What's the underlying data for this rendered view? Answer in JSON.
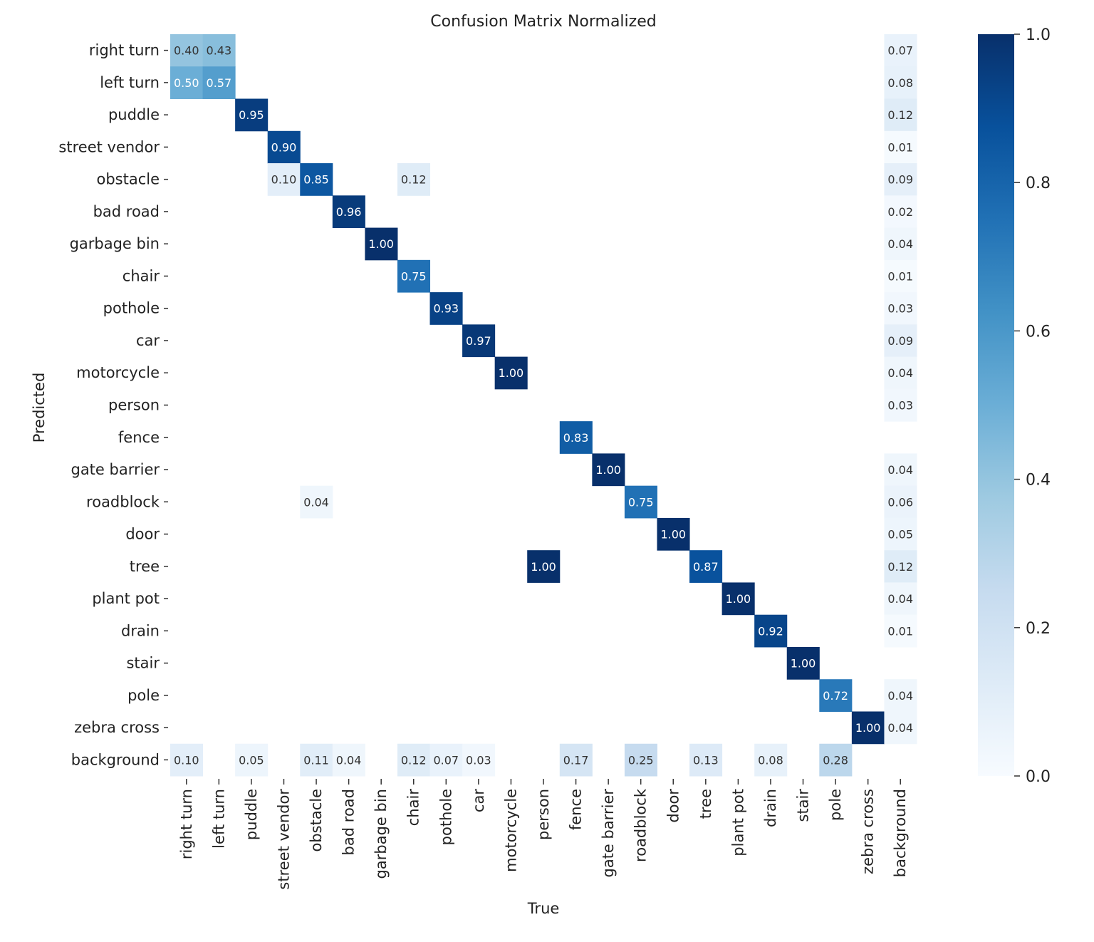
{
  "chart_data": {
    "type": "heatmap",
    "title": "Confusion Matrix Normalized",
    "xlabel": "True",
    "ylabel": "Predicted",
    "colormap": "Blues",
    "colorbar": {
      "range": [
        0.0,
        1.0
      ],
      "ticks": [
        "0.0",
        "0.2",
        "0.4",
        "0.6",
        "0.8",
        "1.0"
      ],
      "placement": "right"
    },
    "labels": [
      "right turn",
      "left turn",
      "puddle",
      "street vendor",
      "obstacle",
      "bad road",
      "garbage bin",
      "chair",
      "pothole",
      "car",
      "motorcycle",
      "person",
      "fence",
      "gate barrier",
      "roadblock",
      "door",
      "tree",
      "plant pot",
      "drain",
      "stair",
      "pole",
      "zebra cross",
      "background"
    ],
    "matrix": [
      [
        0.4,
        0.43,
        null,
        null,
        null,
        null,
        null,
        null,
        null,
        null,
        null,
        null,
        null,
        null,
        null,
        null,
        null,
        null,
        null,
        null,
        null,
        null,
        0.07
      ],
      [
        0.5,
        0.57,
        null,
        null,
        null,
        null,
        null,
        null,
        null,
        null,
        null,
        null,
        null,
        null,
        null,
        null,
        null,
        null,
        null,
        null,
        null,
        null,
        0.08
      ],
      [
        null,
        null,
        0.95,
        null,
        null,
        null,
        null,
        null,
        null,
        null,
        null,
        null,
        null,
        null,
        null,
        null,
        null,
        null,
        null,
        null,
        null,
        null,
        0.12
      ],
      [
        null,
        null,
        null,
        0.9,
        null,
        null,
        null,
        null,
        null,
        null,
        null,
        null,
        null,
        null,
        null,
        null,
        null,
        null,
        null,
        null,
        null,
        null,
        0.01
      ],
      [
        null,
        null,
        null,
        0.1,
        0.85,
        null,
        null,
        0.12,
        null,
        null,
        null,
        null,
        null,
        null,
        null,
        null,
        null,
        null,
        null,
        null,
        null,
        null,
        0.09
      ],
      [
        null,
        null,
        null,
        null,
        null,
        0.96,
        null,
        null,
        null,
        null,
        null,
        null,
        null,
        null,
        null,
        null,
        null,
        null,
        null,
        null,
        null,
        null,
        0.02
      ],
      [
        null,
        null,
        null,
        null,
        null,
        null,
        1.0,
        null,
        null,
        null,
        null,
        null,
        null,
        null,
        null,
        null,
        null,
        null,
        null,
        null,
        null,
        null,
        0.04
      ],
      [
        null,
        null,
        null,
        null,
        null,
        null,
        null,
        0.75,
        null,
        null,
        null,
        null,
        null,
        null,
        null,
        null,
        null,
        null,
        null,
        null,
        null,
        null,
        0.01
      ],
      [
        null,
        null,
        null,
        null,
        null,
        null,
        null,
        null,
        0.93,
        null,
        null,
        null,
        null,
        null,
        null,
        null,
        null,
        null,
        null,
        null,
        null,
        null,
        0.03
      ],
      [
        null,
        null,
        null,
        null,
        null,
        null,
        null,
        null,
        null,
        0.97,
        null,
        null,
        null,
        null,
        null,
        null,
        null,
        null,
        null,
        null,
        null,
        null,
        0.09
      ],
      [
        null,
        null,
        null,
        null,
        null,
        null,
        null,
        null,
        null,
        null,
        1.0,
        null,
        null,
        null,
        null,
        null,
        null,
        null,
        null,
        null,
        null,
        null,
        0.04
      ],
      [
        null,
        null,
        null,
        null,
        null,
        null,
        null,
        null,
        null,
        null,
        null,
        null,
        null,
        null,
        null,
        null,
        null,
        null,
        null,
        null,
        null,
        null,
        0.03
      ],
      [
        null,
        null,
        null,
        null,
        null,
        null,
        null,
        null,
        null,
        null,
        null,
        null,
        0.83,
        null,
        null,
        null,
        null,
        null,
        null,
        null,
        null,
        null,
        null
      ],
      [
        null,
        null,
        null,
        null,
        null,
        null,
        null,
        null,
        null,
        null,
        null,
        null,
        null,
        1.0,
        null,
        null,
        null,
        null,
        null,
        null,
        null,
        null,
        0.04
      ],
      [
        null,
        null,
        null,
        null,
        0.04,
        null,
        null,
        null,
        null,
        null,
        null,
        null,
        null,
        null,
        0.75,
        null,
        null,
        null,
        null,
        null,
        null,
        null,
        0.06
      ],
      [
        null,
        null,
        null,
        null,
        null,
        null,
        null,
        null,
        null,
        null,
        null,
        null,
        null,
        null,
        null,
        1.0,
        null,
        null,
        null,
        null,
        null,
        null,
        0.05
      ],
      [
        null,
        null,
        null,
        null,
        null,
        null,
        null,
        null,
        null,
        null,
        null,
        1.0,
        null,
        null,
        null,
        null,
        0.87,
        null,
        null,
        null,
        null,
        null,
        0.12
      ],
      [
        null,
        null,
        null,
        null,
        null,
        null,
        null,
        null,
        null,
        null,
        null,
        null,
        null,
        null,
        null,
        null,
        null,
        1.0,
        null,
        null,
        null,
        null,
        0.04
      ],
      [
        null,
        null,
        null,
        null,
        null,
        null,
        null,
        null,
        null,
        null,
        null,
        null,
        null,
        null,
        null,
        null,
        null,
        null,
        0.92,
        null,
        null,
        null,
        0.01
      ],
      [
        null,
        null,
        null,
        null,
        null,
        null,
        null,
        null,
        null,
        null,
        null,
        null,
        null,
        null,
        null,
        null,
        null,
        null,
        null,
        1.0,
        null,
        null,
        null
      ],
      [
        null,
        null,
        null,
        null,
        null,
        null,
        null,
        null,
        null,
        null,
        null,
        null,
        null,
        null,
        null,
        null,
        null,
        null,
        null,
        null,
        0.72,
        null,
        0.04
      ],
      [
        null,
        null,
        null,
        null,
        null,
        null,
        null,
        null,
        null,
        null,
        null,
        null,
        null,
        null,
        null,
        null,
        null,
        null,
        null,
        null,
        null,
        1.0,
        0.04
      ],
      [
        0.1,
        null,
        0.05,
        null,
        0.11,
        0.04,
        null,
        0.12,
        0.07,
        0.03,
        null,
        null,
        0.17,
        null,
        0.25,
        null,
        0.13,
        null,
        0.08,
        null,
        0.28,
        null,
        null
      ]
    ]
  }
}
